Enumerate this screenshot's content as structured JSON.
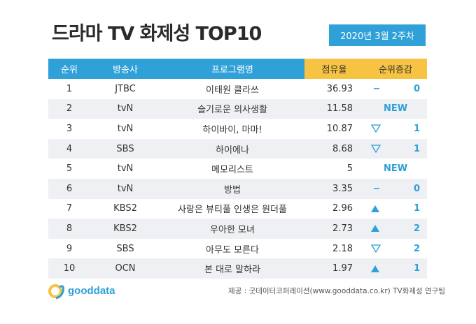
{
  "title": "드라마 TV 화제성 TOP10",
  "date": "2020년 3월 2주차",
  "table": {
    "headers": {
      "rank": "순위",
      "broadcaster": "방송사",
      "program": "프로그램명",
      "share": "점유율",
      "change": "순위증감"
    },
    "rows": [
      {
        "rank": "1",
        "broadcaster": "JTBC",
        "program": "이태원 클라쓰",
        "share": "36.93",
        "change_type": "same",
        "change_value": "0"
      },
      {
        "rank": "2",
        "broadcaster": "tvN",
        "program": "슬기로운 의사생활",
        "share": "11.58",
        "change_type": "new",
        "change_value": "NEW"
      },
      {
        "rank": "3",
        "broadcaster": "tvN",
        "program": "하이바이, 마마!",
        "share": "10.87",
        "change_type": "down",
        "change_value": "1"
      },
      {
        "rank": "4",
        "broadcaster": "SBS",
        "program": "하이에나",
        "share": "8.68",
        "change_type": "down",
        "change_value": "1"
      },
      {
        "rank": "5",
        "broadcaster": "tvN",
        "program": "메모리스트",
        "share": "5",
        "change_type": "new",
        "change_value": "NEW"
      },
      {
        "rank": "6",
        "broadcaster": "tvN",
        "program": "방법",
        "share": "3.35",
        "change_type": "same",
        "change_value": "0"
      },
      {
        "rank": "7",
        "broadcaster": "KBS2",
        "program": "사랑은 뷰티풀 인생은 원더풀",
        "share": "2.96",
        "change_type": "up",
        "change_value": "1"
      },
      {
        "rank": "8",
        "broadcaster": "KBS2",
        "program": "우아한 모녀",
        "share": "2.73",
        "change_type": "up",
        "change_value": "2"
      },
      {
        "rank": "9",
        "broadcaster": "SBS",
        "program": "아무도 모른다",
        "share": "2.18",
        "change_type": "down",
        "change_value": "2"
      },
      {
        "rank": "10",
        "broadcaster": "OCN",
        "program": "본 대로 말하라",
        "share": "1.97",
        "change_type": "up",
        "change_value": "1"
      }
    ]
  },
  "logo": {
    "text": "gooddata",
    "icon": "gooddata-logo-icon"
  },
  "source": "제공 : 굿데이터코퍼레이션(www.gooddata.co.kr) TV화제성 연구팀",
  "colors": {
    "accent": "#2fa0d8",
    "highlight": "#f6c342",
    "row_alt": "#eef0f3"
  }
}
